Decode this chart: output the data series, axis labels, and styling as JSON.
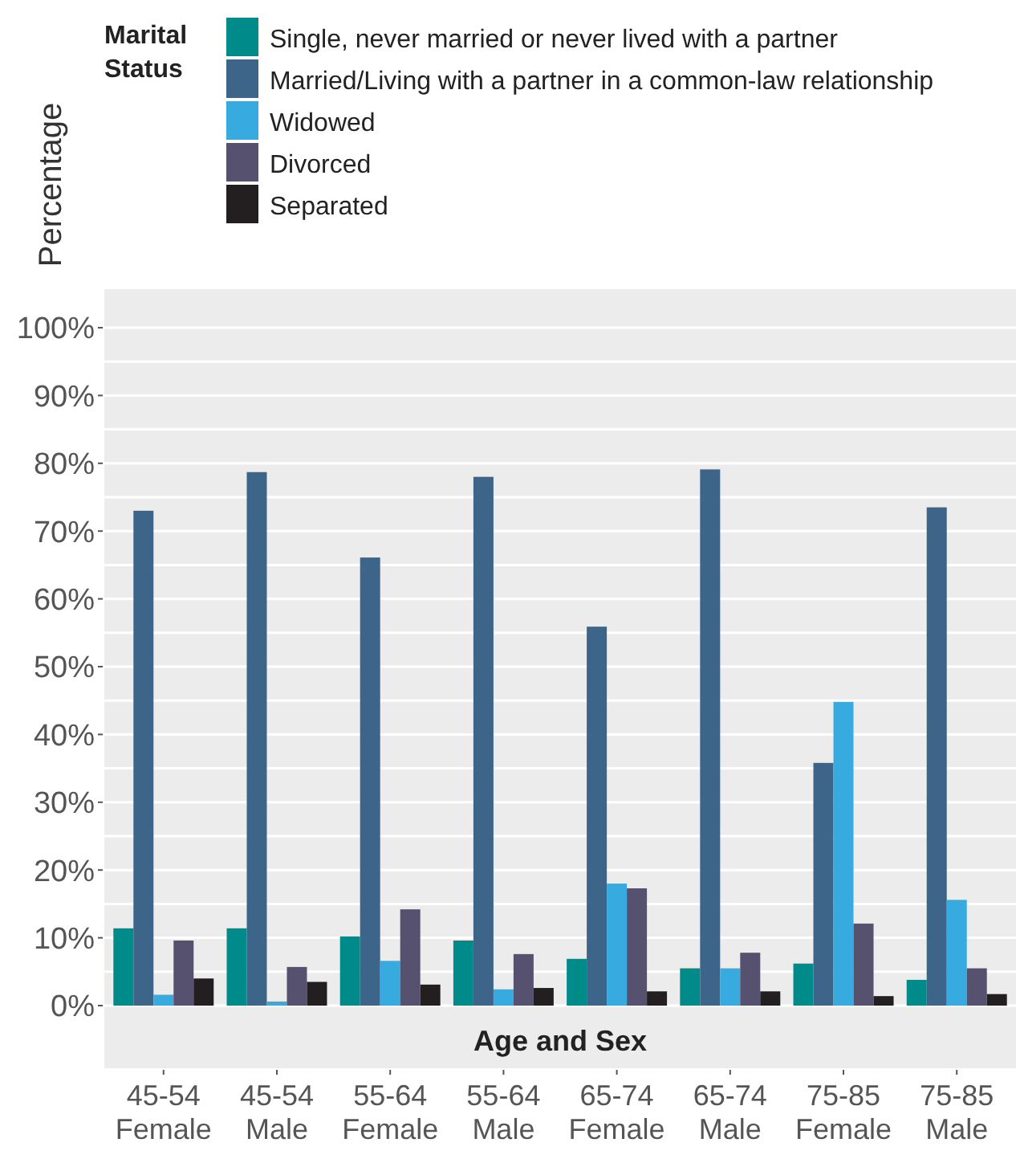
{
  "chart_data": {
    "type": "bar",
    "xlabel": "Age and Sex",
    "ylabel": "Percentage",
    "legend_title": "Marital Status",
    "legend": "top left",
    "categories": [
      "45-54\nFemale",
      "45-54\nMale",
      "55-64\nFemale",
      "55-64\nMale",
      "65-74\nFemale",
      "65-74\nMale",
      "75-85\nFemale",
      "75-85\nMale"
    ],
    "series": [
      {
        "name": "Single, never married or never lived with a partner",
        "color": "#008b8b",
        "values": [
          11.4,
          11.4,
          10.2,
          9.6,
          6.9,
          5.5,
          6.2,
          3.8
        ]
      },
      {
        "name": "Married/Living with a partner in a common-law relationship",
        "color": "#3d6589",
        "values": [
          73.0,
          78.7,
          66.1,
          78.0,
          55.9,
          79.1,
          35.8,
          73.5
        ]
      },
      {
        "name": "Widowed",
        "color": "#37abe0",
        "values": [
          1.6,
          0.6,
          6.6,
          2.4,
          18.0,
          5.5,
          44.8,
          15.6
        ]
      },
      {
        "name": "Divorced",
        "color": "#56516f",
        "values": [
          9.6,
          5.7,
          14.2,
          7.6,
          17.3,
          7.8,
          12.1,
          5.5
        ]
      },
      {
        "name": "Separated",
        "color": "#231f20",
        "values": [
          4.0,
          3.5,
          3.1,
          2.6,
          2.1,
          2.1,
          1.4,
          1.7
        ]
      }
    ],
    "ylim": [
      0,
      100
    ],
    "yticks": [
      {
        "value": 0,
        "label": "0%"
      },
      {
        "value": 5,
        "label": null
      },
      {
        "value": 10,
        "label": "10%"
      },
      {
        "value": 15,
        "label": null
      },
      {
        "value": 20,
        "label": "20%"
      },
      {
        "value": 25,
        "label": null
      },
      {
        "value": 30,
        "label": "30%"
      },
      {
        "value": 35,
        "label": null
      },
      {
        "value": 40,
        "label": "40%"
      },
      {
        "value": 45,
        "label": null
      },
      {
        "value": 50,
        "label": "50%"
      },
      {
        "value": 55,
        "label": null
      },
      {
        "value": 60,
        "label": "60%"
      },
      {
        "value": 65,
        "label": null
      },
      {
        "value": 70,
        "label": "70%"
      },
      {
        "value": 75,
        "label": null
      },
      {
        "value": 80,
        "label": "80%"
      },
      {
        "value": 85,
        "label": null
      },
      {
        "value": 90,
        "label": "90%"
      },
      {
        "value": 95,
        "label": null
      },
      {
        "value": 100,
        "label": "100%"
      }
    ],
    "grid": "y"
  }
}
